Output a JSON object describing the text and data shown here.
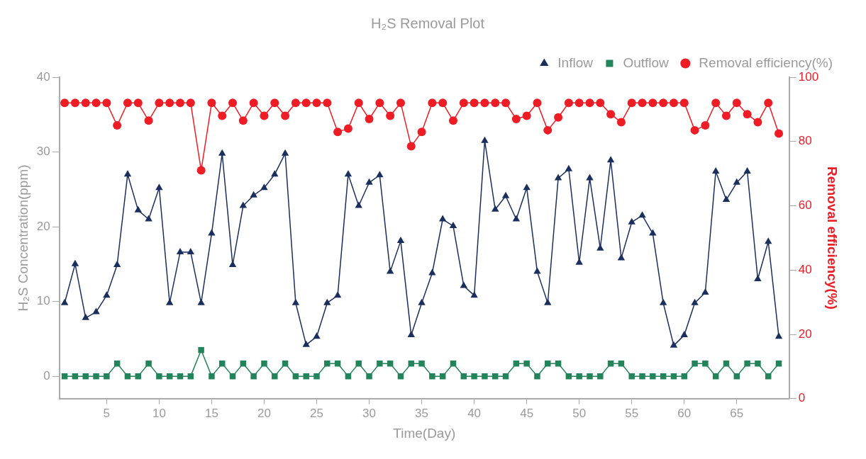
{
  "chart_data": {
    "type": "line",
    "title": "H₂S Removal Plot",
    "xlabel": "Time(Day)",
    "ylabel": "H₂S Concentration(ppm)",
    "y2label": "Removal efficiency(%)",
    "x": [
      1,
      2,
      3,
      4,
      5,
      6,
      7,
      8,
      9,
      10,
      11,
      12,
      13,
      14,
      15,
      16,
      17,
      18,
      19,
      20,
      21,
      22,
      23,
      24,
      25,
      26,
      27,
      28,
      29,
      30,
      31,
      32,
      33,
      34,
      35,
      36,
      37,
      38,
      39,
      40,
      41,
      42,
      43,
      44,
      45,
      46,
      47,
      48,
      49,
      50,
      51,
      52,
      53,
      54,
      55,
      56,
      57,
      58,
      59,
      60,
      61,
      62,
      63,
      64,
      65,
      66,
      67,
      68,
      69
    ],
    "series": [
      {
        "name": "Inflow",
        "color": "#1b2f5e",
        "marker": "triangle",
        "values": [
          9.8,
          15,
          7.8,
          8.6,
          10.8,
          14.9,
          27,
          22.2,
          21,
          25.2,
          9.8,
          16.6,
          16.6,
          9.8,
          19.1,
          29.8,
          14.9,
          22.8,
          24.2,
          25.2,
          27,
          29.8,
          9.8,
          4.2,
          5.3,
          9.8,
          10.8,
          27,
          22.8,
          25.9,
          26.9,
          14,
          18.1,
          5.5,
          9.8,
          13.8,
          21,
          20.1,
          12.1,
          10.8,
          31.5,
          22.3,
          24.1,
          21,
          25.2,
          14,
          9.8,
          26.5,
          27.7,
          15.2,
          26.5,
          17.1,
          28.9,
          15.8,
          20.6,
          21.5,
          19.1,
          9.8,
          4.1,
          5.5,
          9.8,
          11.2,
          27.4,
          23.6,
          25.9,
          27.4,
          13,
          18,
          5.3
        ]
      },
      {
        "name": "Outflow",
        "color": "#23835a",
        "marker": "square",
        "values": [
          0,
          0,
          0,
          0,
          0,
          1.7,
          0,
          0,
          1.7,
          0,
          0,
          0,
          0,
          3.5,
          0,
          1.7,
          0,
          1.7,
          0,
          1.7,
          0,
          1.7,
          0,
          0,
          0,
          1.7,
          1.7,
          0,
          1.7,
          0,
          1.7,
          1.7,
          0,
          1.7,
          1.7,
          0,
          0,
          1.7,
          0,
          0,
          0,
          0,
          0,
          1.7,
          1.7,
          0,
          1.7,
          1.7,
          0,
          0,
          0,
          0,
          1.7,
          1.7,
          0,
          0,
          0,
          0,
          0,
          0,
          1.7,
          1.7,
          0,
          1.7,
          0,
          1.7,
          1.7,
          0,
          1.7
        ]
      },
      {
        "name": "Removal efficiency(%)",
        "color": "#ee1c25",
        "marker": "circle",
        "axis": "y2",
        "values": [
          92,
          92,
          92,
          92,
          92,
          85,
          92,
          92,
          86.5,
          92,
          92,
          92,
          92,
          71,
          92,
          88,
          92,
          86.5,
          92,
          88,
          92,
          88,
          92,
          92,
          92,
          92,
          83,
          84,
          92,
          87,
          92,
          88,
          92,
          78.5,
          83,
          92,
          92,
          86.5,
          92,
          92,
          92,
          92,
          92,
          87,
          88,
          92,
          83.5,
          87.5,
          92,
          92,
          92,
          92,
          88.5,
          86,
          92,
          92,
          92,
          92,
          92,
          92,
          83.5,
          85,
          92,
          88,
          92,
          88.5,
          86,
          92,
          82.5
        ]
      }
    ],
    "xlim": [
      0.5,
      70
    ],
    "xticks": [
      5,
      10,
      15,
      20,
      25,
      30,
      35,
      40,
      45,
      50,
      55,
      60,
      65
    ],
    "ylim": [
      -3,
      40
    ],
    "yticks": [
      0,
      10,
      20,
      30,
      40
    ],
    "y2lim": [
      0,
      100
    ],
    "y2ticks": [
      0,
      20,
      40,
      60,
      80,
      100
    ],
    "grid": false,
    "legend": "top right",
    "line_style": "solid"
  }
}
